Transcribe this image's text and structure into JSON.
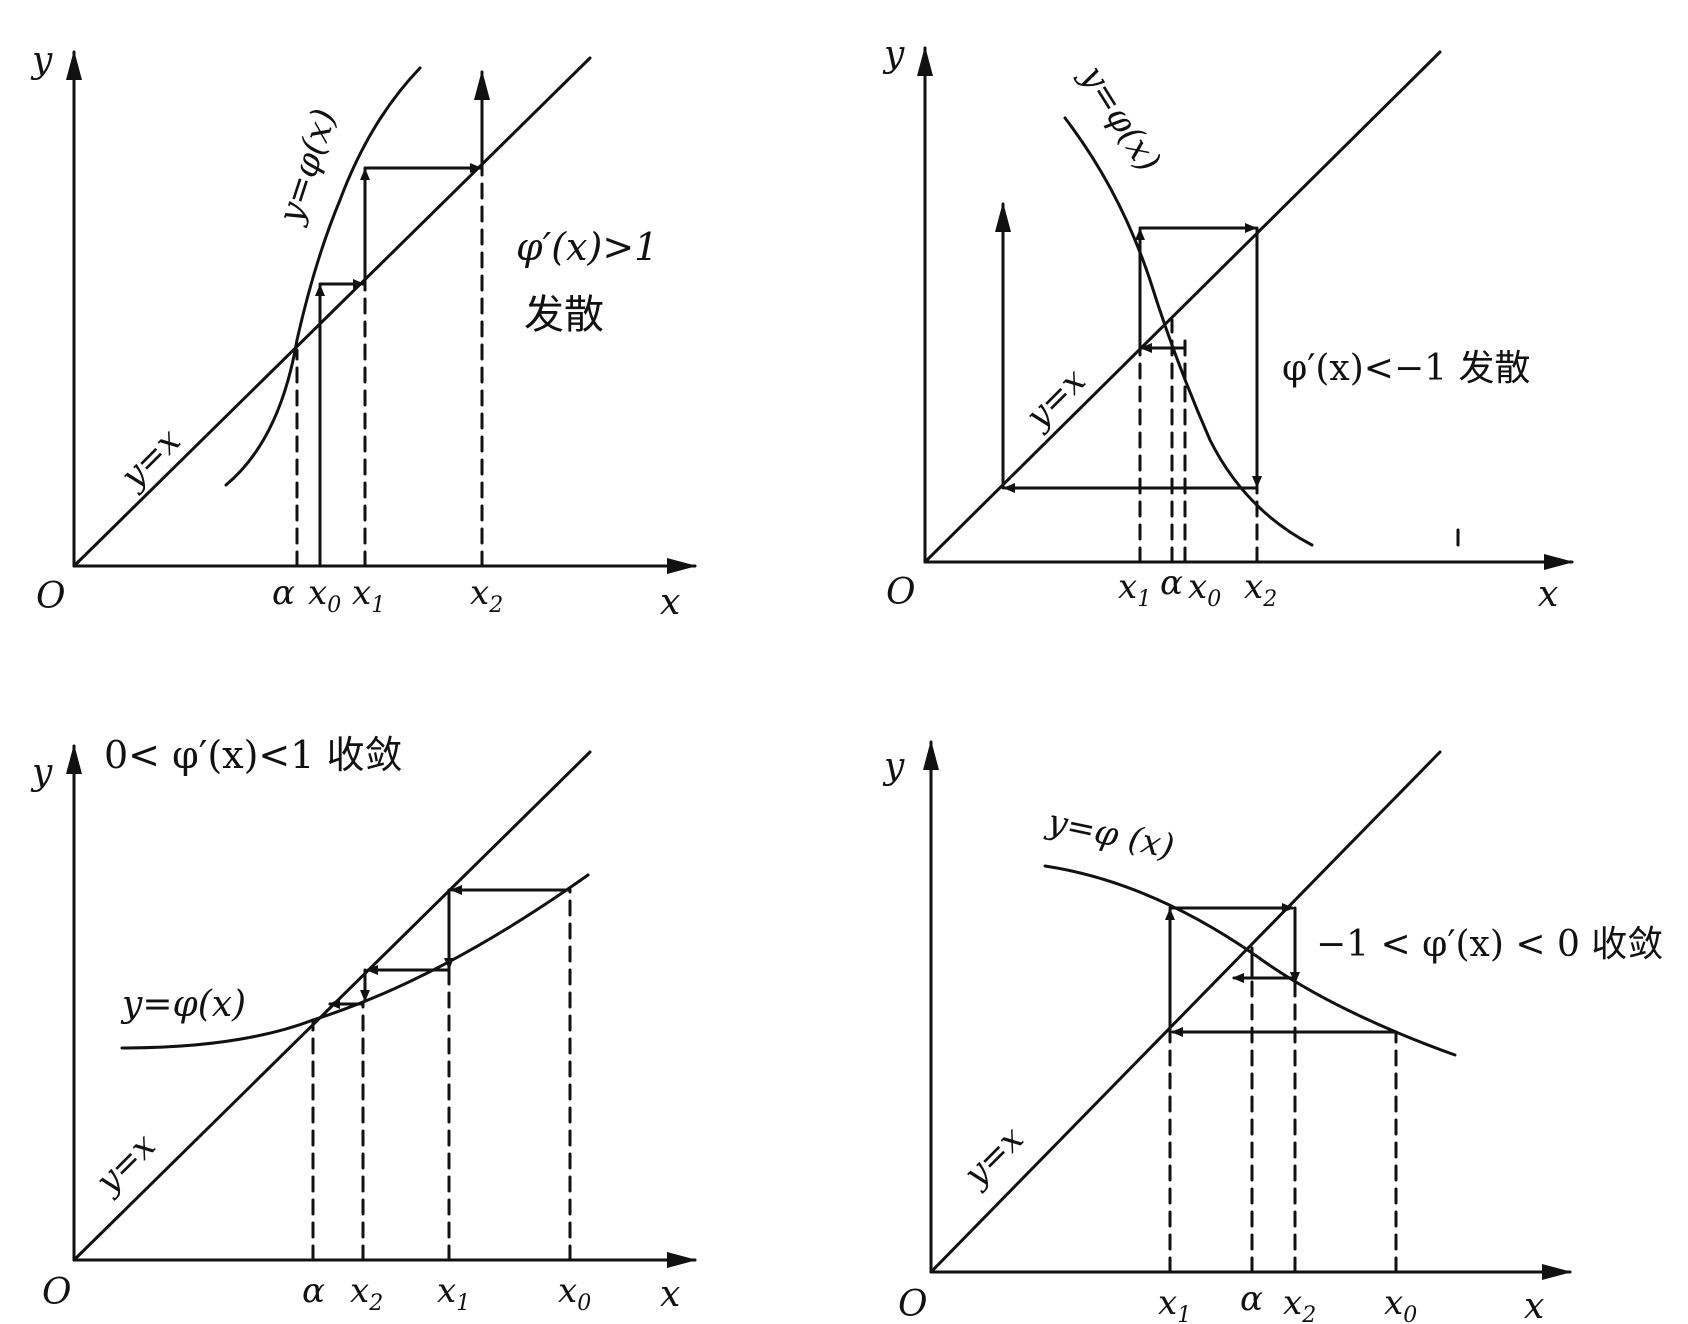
{
  "common": {
    "axis_y": "y",
    "axis_x": "x",
    "origin": "O",
    "ink": "#111111"
  },
  "panels": [
    {
      "label_line": "y=x",
      "label_curve": "y=φ(x)",
      "condition": "φ′(x)>1",
      "verdict": "发散",
      "ticks": [
        {
          "main": "α",
          "sub": ""
        },
        {
          "main": "x",
          "sub": "0"
        },
        {
          "main": "x",
          "sub": "1"
        },
        {
          "main": "x",
          "sub": "2"
        }
      ]
    },
    {
      "label_line": "y=x",
      "label_curve": "y=φ(x)",
      "condition": "φ′(x)<−1 发散",
      "verdict": "",
      "ticks": [
        {
          "main": "x",
          "sub": "1"
        },
        {
          "main": "α",
          "sub": ""
        },
        {
          "main": "x",
          "sub": "0"
        },
        {
          "main": "x",
          "sub": "2"
        }
      ]
    },
    {
      "label_line": "y=x",
      "label_curve": "y=φ(x)",
      "condition": "0< φ′(x)<1  收敛",
      "verdict": "",
      "ticks": [
        {
          "main": "α",
          "sub": ""
        },
        {
          "main": "x",
          "sub": "2"
        },
        {
          "main": "x",
          "sub": "1"
        },
        {
          "main": "x",
          "sub": "0"
        }
      ]
    },
    {
      "label_line": "y=x",
      "label_curve": "y=φ (x)",
      "condition": "−1 < φ′(x) < 0 收敛",
      "verdict": "",
      "ticks": [
        {
          "main": "x",
          "sub": "1"
        },
        {
          "main": "α",
          "sub": ""
        },
        {
          "main": "x",
          "sub": "2"
        },
        {
          "main": "x",
          "sub": "0"
        }
      ]
    }
  ]
}
